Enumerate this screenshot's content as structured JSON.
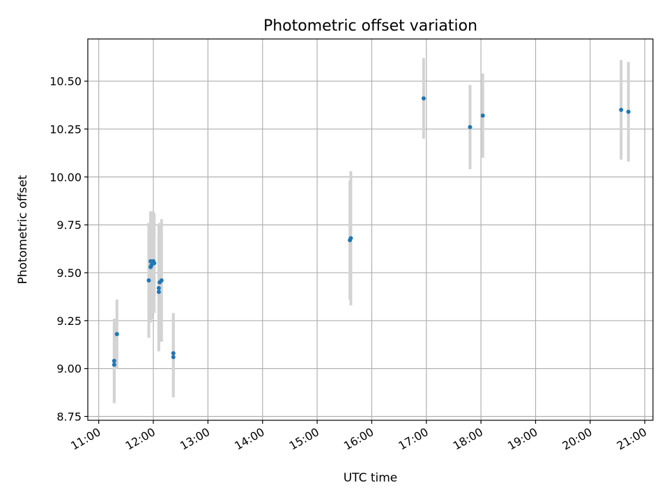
{
  "chart_data": {
    "type": "scatter",
    "title": "Photometric offset variation",
    "xlabel": "UTC time",
    "ylabel": "Photometric offset",
    "x_unit": "hours UTC",
    "xlim": [
      "11:00",
      "21:00"
    ],
    "ylim": [
      8.73,
      10.72
    ],
    "xticks": [
      "11:00",
      "12:00",
      "13:00",
      "14:00",
      "15:00",
      "16:00",
      "17:00",
      "18:00",
      "19:00",
      "20:00",
      "21:00"
    ],
    "yticks": [
      "8.75",
      "9.00",
      "9.25",
      "9.50",
      "9.75",
      "10.00",
      "10.25",
      "10.50"
    ],
    "grid": true,
    "point_color": "#1f77b4",
    "errorbar_color": "#d3d3d3",
    "points": [
      {
        "time": "11:17",
        "y": 9.04,
        "err": 0.22
      },
      {
        "time": "11:17",
        "y": 9.02,
        "err": 0.2
      },
      {
        "time": "11:20",
        "y": 9.18,
        "err": 0.18
      },
      {
        "time": "11:55",
        "y": 9.46,
        "err": 0.3
      },
      {
        "time": "11:57",
        "y": 9.53,
        "err": 0.29
      },
      {
        "time": "11:57",
        "y": 9.56,
        "err": 0.26
      },
      {
        "time": "11:58",
        "y": 9.54,
        "err": 0.28
      },
      {
        "time": "12:00",
        "y": 9.56,
        "err": 0.26
      },
      {
        "time": "12:01",
        "y": 9.55,
        "err": 0.26
      },
      {
        "time": "12:06",
        "y": 9.42,
        "err": 0.33
      },
      {
        "time": "12:06",
        "y": 9.4,
        "err": 0.3
      },
      {
        "time": "12:07",
        "y": 9.45,
        "err": 0.31
      },
      {
        "time": "12:09",
        "y": 9.46,
        "err": 0.32
      },
      {
        "time": "12:22",
        "y": 9.08,
        "err": 0.21
      },
      {
        "time": "12:22",
        "y": 9.06,
        "err": 0.21
      },
      {
        "time": "15:36",
        "y": 9.67,
        "err": 0.31
      },
      {
        "time": "15:37",
        "y": 9.68,
        "err": 0.35
      },
      {
        "time": "16:57",
        "y": 10.41,
        "err": 0.21
      },
      {
        "time": "17:48",
        "y": 10.26,
        "err": 0.22
      },
      {
        "time": "18:02",
        "y": 10.32,
        "err": 0.22
      },
      {
        "time": "20:34",
        "y": 10.35,
        "err": 0.26
      },
      {
        "time": "20:42",
        "y": 10.34,
        "err": 0.26
      }
    ]
  }
}
